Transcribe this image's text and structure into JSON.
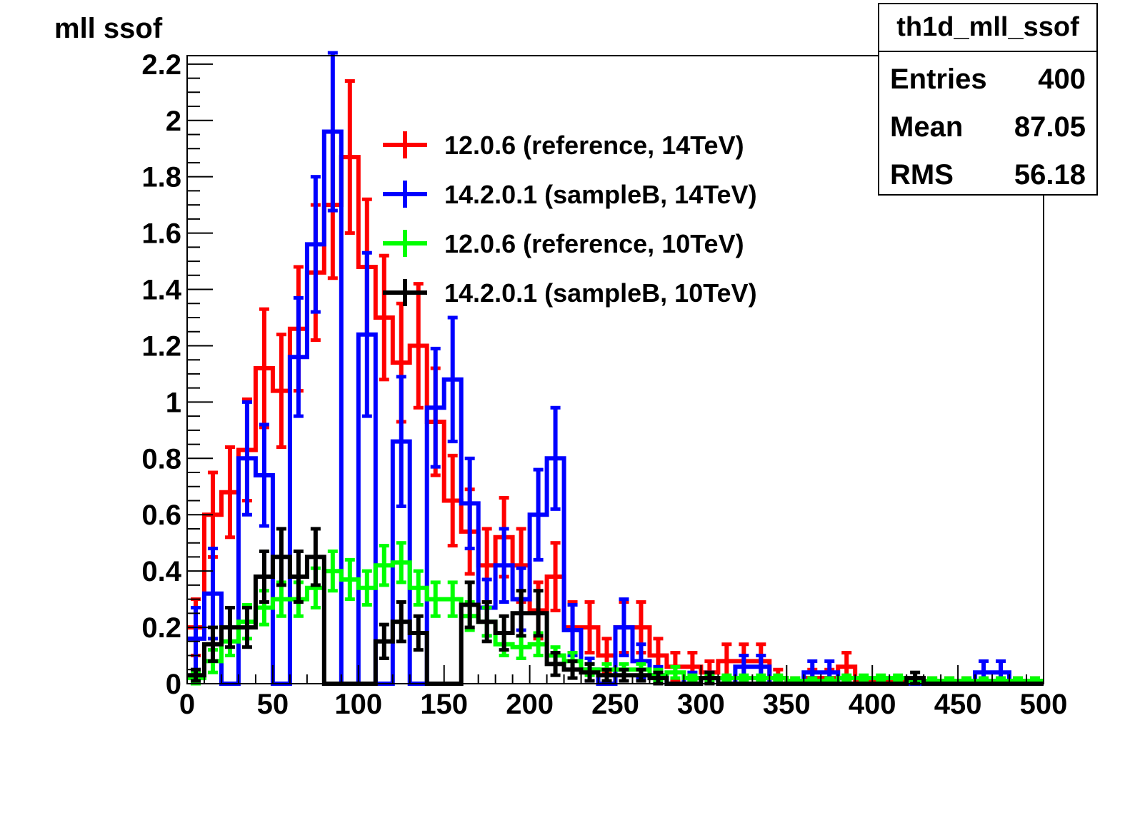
{
  "chart_data": {
    "type": "histogram",
    "title": "mll ssof",
    "xlabel": "",
    "ylabel": "",
    "xlim": [
      0,
      500
    ],
    "ylim": [
      0,
      2.23
    ],
    "bin_width": 10,
    "grid": false,
    "legend_position": "top-center",
    "x_ticks": [
      "0",
      "50",
      "100",
      "150",
      "200",
      "250",
      "300",
      "350",
      "400",
      "450",
      "500"
    ],
    "y_ticks": [
      "0",
      "0.2",
      "0.4",
      "0.6",
      "0.8",
      "1",
      "1.2",
      "1.4",
      "1.6",
      "1.8",
      "2",
      "2.2"
    ],
    "stats": {
      "name": "th1d_mll_ssof",
      "rows": [
        {
          "label": "Entries",
          "value": "400"
        },
        {
          "label": "Mean",
          "value": "87.05"
        },
        {
          "label": "RMS",
          "value": "56.18"
        }
      ]
    },
    "series": [
      {
        "name": "12.0.6 (reference, 14TeV)",
        "color": "#ff0000",
        "values": [
          0.2,
          0.6,
          0.68,
          0.83,
          1.12,
          1.04,
          1.26,
          1.46,
          1.7,
          1.87,
          1.48,
          1.3,
          1.14,
          1.2,
          0.93,
          0.65,
          0.54,
          0.42,
          0.52,
          0.42,
          0.26,
          0.38,
          0.2,
          0.2,
          0.1,
          0.2,
          0.2,
          0.1,
          0.06,
          0.06,
          0.04,
          0.08,
          0.08,
          0.08,
          0.02,
          0.01,
          0.02,
          0.02,
          0.06,
          0.01,
          0.01,
          0.01,
          0.01,
          0.01,
          0.01,
          0.01,
          0.01,
          0.01,
          0.01,
          0.01
        ],
        "errors": [
          0.1,
          0.15,
          0.16,
          0.18,
          0.21,
          0.2,
          0.22,
          0.24,
          0.26,
          0.27,
          0.24,
          0.22,
          0.21,
          0.22,
          0.19,
          0.16,
          0.15,
          0.13,
          0.14,
          0.13,
          0.1,
          0.12,
          0.09,
          0.09,
          0.06,
          0.09,
          0.09,
          0.06,
          0.05,
          0.05,
          0.04,
          0.06,
          0.06,
          0.06,
          0.03,
          0.01,
          0.03,
          0.03,
          0.05,
          0.01,
          0.01,
          0.01,
          0.01,
          0.01,
          0.01,
          0.01,
          0.01,
          0.01,
          0.01,
          0.01
        ]
      },
      {
        "name": "14.2.0.1 (sampleB, 14TeV)",
        "color": "#0000ff",
        "values": [
          0.16,
          0.32,
          0.0,
          0.8,
          0.74,
          0.0,
          1.16,
          1.56,
          1.96,
          0.0,
          1.24,
          0.0,
          0.86,
          0.0,
          0.98,
          1.08,
          0.64,
          0.27,
          0.42,
          0.3,
          0.6,
          0.8,
          0.19,
          0.05,
          0.0,
          0.2,
          0.08,
          0.03,
          0.0,
          0.02,
          0.02,
          0.0,
          0.06,
          0.06,
          0.0,
          0.0,
          0.04,
          0.04,
          0.0,
          0.0,
          0.0,
          0.0,
          0.0,
          0.0,
          0.0,
          0.0,
          0.04,
          0.04,
          0.0,
          0.0
        ],
        "errors": [
          0.11,
          0.16,
          0.0,
          0.2,
          0.18,
          0.0,
          0.21,
          0.24,
          0.28,
          0.0,
          0.29,
          0.0,
          0.23,
          0.0,
          0.21,
          0.22,
          0.16,
          0.1,
          0.13,
          0.11,
          0.16,
          0.18,
          0.09,
          0.04,
          0.0,
          0.1,
          0.06,
          0.03,
          0.0,
          0.02,
          0.02,
          0.0,
          0.04,
          0.04,
          0.0,
          0.0,
          0.04,
          0.04,
          0.0,
          0.0,
          0.0,
          0.0,
          0.0,
          0.0,
          0.0,
          0.0,
          0.04,
          0.04,
          0.0,
          0.0
        ]
      },
      {
        "name": "12.0.6 (reference, 10TeV)",
        "color": "#00ff00",
        "values": [
          0.02,
          0.08,
          0.15,
          0.22,
          0.27,
          0.3,
          0.3,
          0.34,
          0.4,
          0.37,
          0.34,
          0.42,
          0.43,
          0.34,
          0.3,
          0.3,
          0.24,
          0.22,
          0.14,
          0.13,
          0.14,
          0.1,
          0.08,
          0.05,
          0.05,
          0.05,
          0.05,
          0.03,
          0.04,
          0.02,
          0.02,
          0.02,
          0.02,
          0.02,
          0.02,
          0.01,
          0.01,
          0.01,
          0.02,
          0.02,
          0.02,
          0.02,
          0.01,
          0.01,
          0.01,
          0.01,
          0.01,
          0.01,
          0.01,
          0.01
        ],
        "errors": [
          0.02,
          0.04,
          0.05,
          0.06,
          0.06,
          0.06,
          0.06,
          0.07,
          0.07,
          0.07,
          0.06,
          0.07,
          0.07,
          0.06,
          0.06,
          0.06,
          0.05,
          0.05,
          0.04,
          0.04,
          0.04,
          0.03,
          0.03,
          0.02,
          0.02,
          0.02,
          0.02,
          0.02,
          0.02,
          0.01,
          0.01,
          0.01,
          0.01,
          0.01,
          0.01,
          0.01,
          0.01,
          0.01,
          0.01,
          0.01,
          0.01,
          0.01,
          0.01,
          0.01,
          0.01,
          0.01,
          0.01,
          0.01,
          0.01,
          0.01
        ]
      },
      {
        "name": "14.2.0.1 (sampleB, 10TeV)",
        "color": "#000000",
        "values": [
          0.03,
          0.14,
          0.2,
          0.2,
          0.38,
          0.45,
          0.38,
          0.45,
          0.0,
          0.0,
          0.0,
          0.15,
          0.22,
          0.18,
          0.0,
          0.0,
          0.28,
          0.22,
          0.18,
          0.25,
          0.25,
          0.07,
          0.05,
          0.04,
          0.03,
          0.03,
          0.03,
          0.02,
          0.0,
          0.0,
          0.02,
          0.0,
          0.0,
          0.0,
          0.0,
          0.0,
          0.0,
          0.0,
          0.0,
          0.0,
          0.0,
          0.0,
          0.02,
          0.0,
          0.0,
          0.0,
          0.0,
          0.0,
          0.0,
          0.0
        ],
        "errors": [
          0.02,
          0.06,
          0.07,
          0.07,
          0.09,
          0.1,
          0.09,
          0.1,
          0.0,
          0.0,
          0.0,
          0.06,
          0.07,
          0.06,
          0.0,
          0.0,
          0.08,
          0.07,
          0.06,
          0.08,
          0.08,
          0.04,
          0.03,
          0.03,
          0.02,
          0.02,
          0.02,
          0.02,
          0.0,
          0.0,
          0.02,
          0.0,
          0.0,
          0.0,
          0.0,
          0.0,
          0.0,
          0.0,
          0.0,
          0.0,
          0.0,
          0.0,
          0.02,
          0.0,
          0.0,
          0.0,
          0.0,
          0.0,
          0.0,
          0.0
        ]
      }
    ]
  }
}
